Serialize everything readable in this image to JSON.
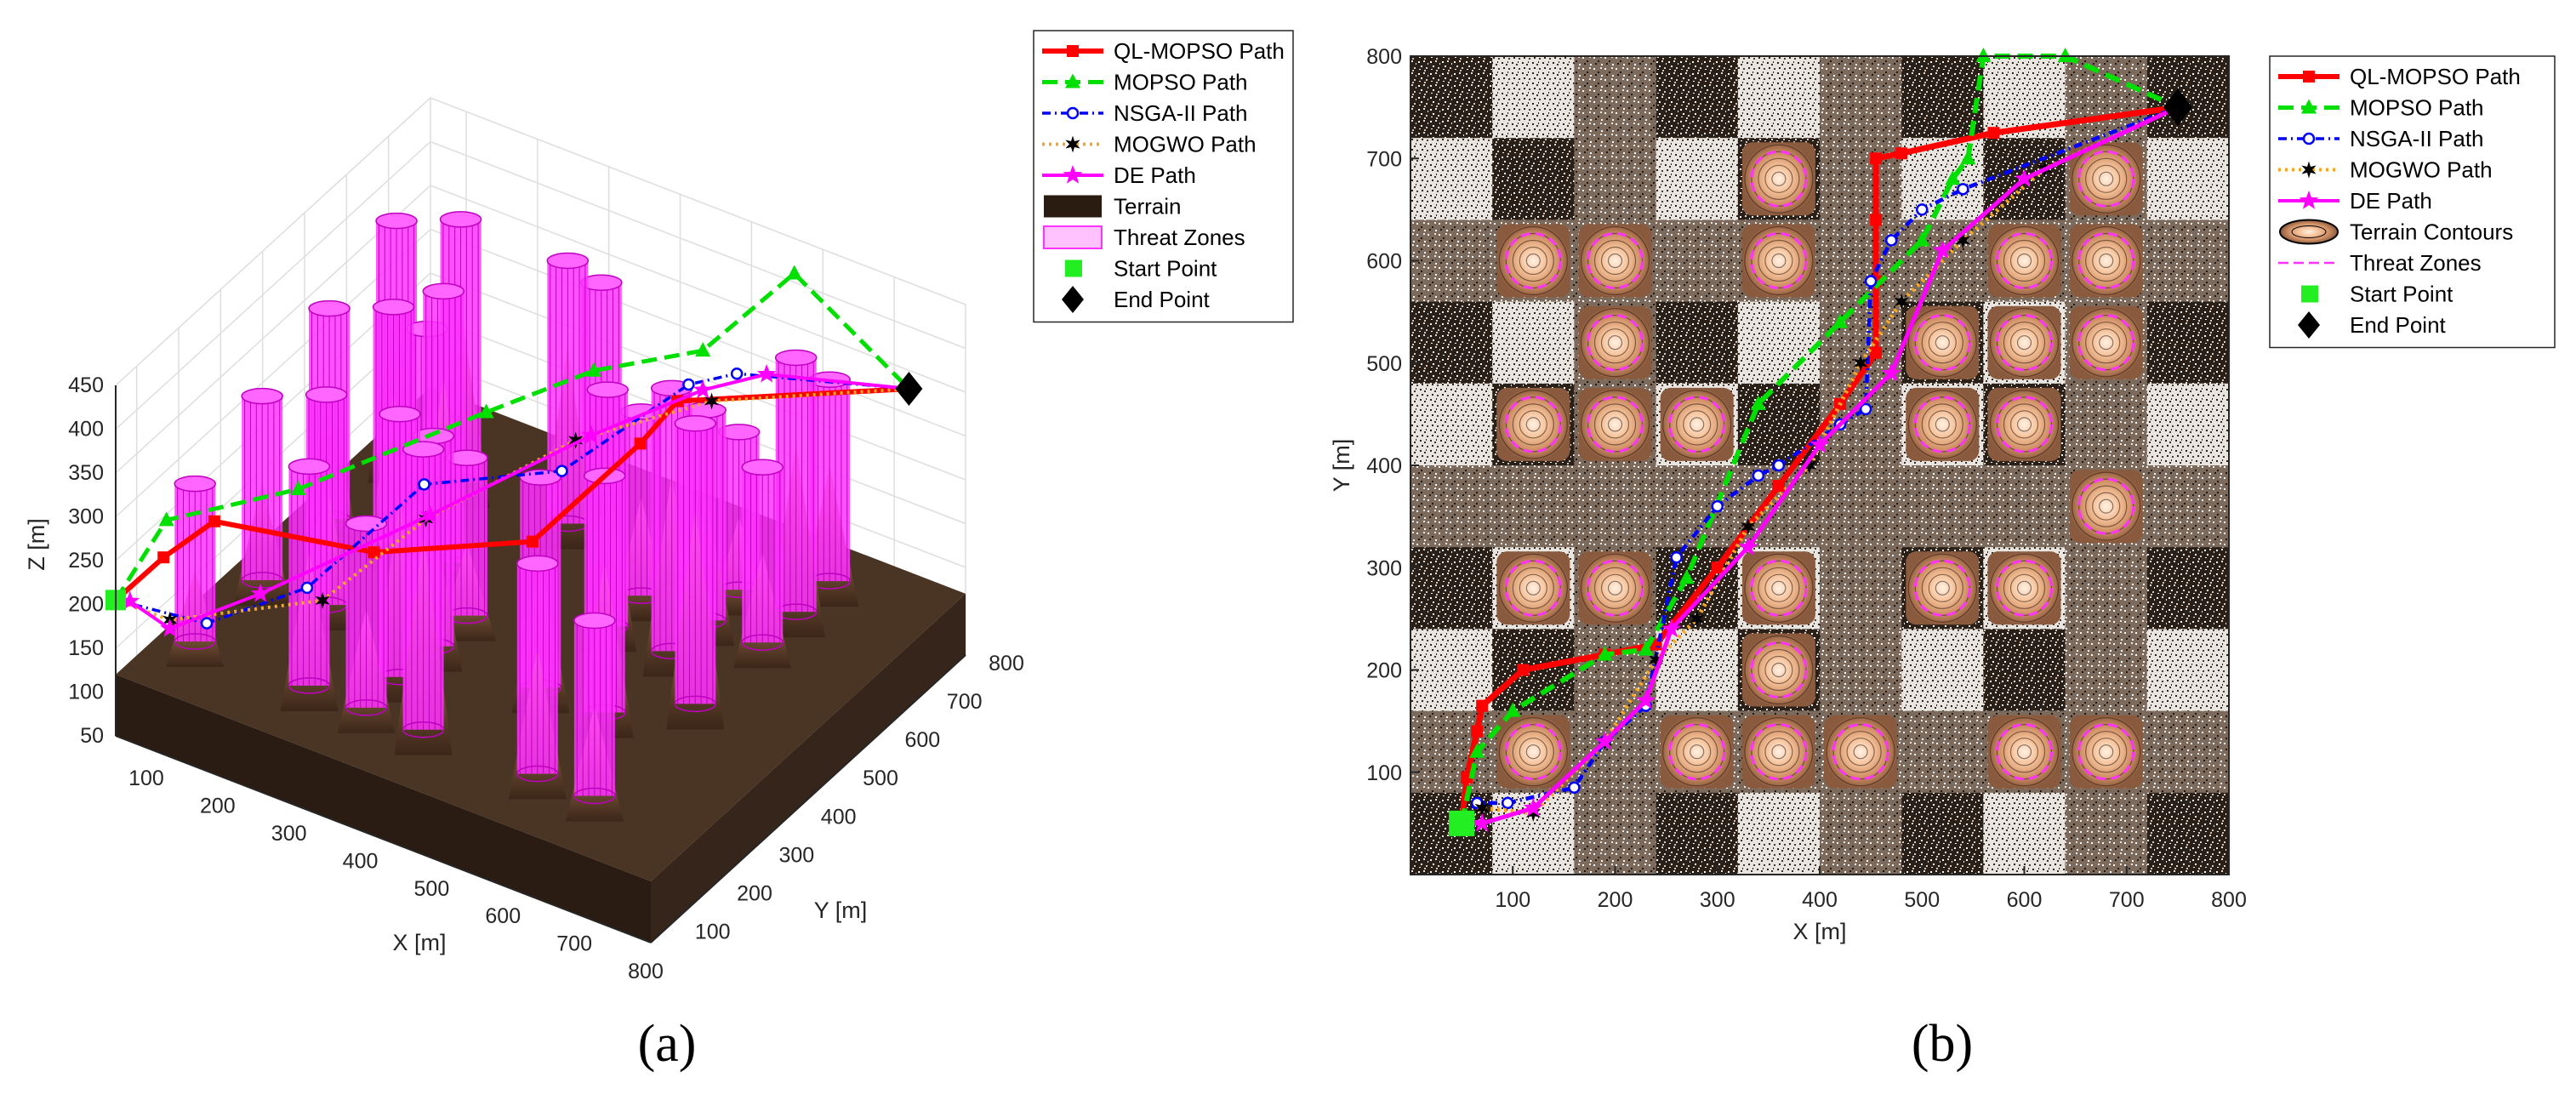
{
  "panels": [
    "(a)",
    "(b)"
  ],
  "colors": {
    "ql": "#ff0000",
    "mopso": "#00e000",
    "nsga": "#0000ff",
    "mogwo": "#f5a623",
    "de": "#ff00ff",
    "threat": "#ff33ff",
    "terrain": "#4a3424",
    "start": "#22ee22",
    "end": "#000000"
  },
  "chart_data": [
    {
      "type": "line",
      "panel": "(a)",
      "view": "3d",
      "xlabel": "X [m]",
      "ylabel": "Y [m]",
      "zlabel": "Z [m]",
      "xticks": [
        100,
        200,
        300,
        400,
        500,
        600,
        700,
        800
      ],
      "yticks": [
        100,
        200,
        300,
        400,
        500,
        600,
        700,
        800
      ],
      "zticks": [
        50,
        100,
        150,
        200,
        250,
        300,
        350,
        400,
        450
      ],
      "xlim": [
        50,
        800
      ],
      "ylim": [
        50,
        800
      ],
      "zlim": [
        50,
        450
      ],
      "legend": [
        "QL-MOPSO Path",
        "MOPSO Path",
        "NSGA-II Path",
        "MOGWO Path",
        "DE Path",
        "Terrain",
        "Threat Zones",
        "Start Point",
        "End Point"
      ],
      "threat_centers": [
        [
          120,
          600
        ],
        [
          210,
          600
        ],
        [
          360,
          600
        ],
        [
          210,
          520
        ],
        [
          120,
          440
        ],
        [
          210,
          440
        ],
        [
          280,
          440
        ],
        [
          360,
          360
        ],
        [
          120,
          280
        ],
        [
          210,
          280
        ],
        [
          360,
          280
        ],
        [
          510,
          280
        ],
        [
          600,
          280
        ],
        [
          360,
          200
        ],
        [
          120,
          120
        ],
        [
          280,
          120
        ],
        [
          360,
          120
        ],
        [
          440,
          120
        ],
        [
          600,
          120
        ],
        [
          680,
          120
        ],
        [
          510,
          520
        ],
        [
          600,
          520
        ],
        [
          680,
          520
        ],
        [
          510,
          440
        ],
        [
          600,
          440
        ],
        [
          680,
          360
        ],
        [
          360,
          680
        ],
        [
          600,
          600
        ],
        [
          680,
          600
        ],
        [
          680,
          680
        ]
      ],
      "series": [
        {
          "name": "QL-MOPSO Path",
          "points": [
            [
              50,
              50,
              205
            ],
            [
              70,
              130,
              225
            ],
            [
              100,
              200,
              245
            ],
            [
              300,
              240,
              255
            ],
            [
              440,
              380,
              250
            ],
            [
              450,
              620,
              260
            ],
            [
              455,
              700,
              275
            ],
            [
              750,
              750,
              360
            ]
          ]
        },
        {
          "name": "MOPSO Path",
          "points": [
            [
              50,
              50,
              205
            ],
            [
              80,
              120,
              275
            ],
            [
              200,
              230,
              300
            ],
            [
              340,
              440,
              340
            ],
            [
              420,
              560,
              360
            ],
            [
              520,
              650,
              375
            ],
            [
              560,
              800,
              410
            ],
            [
              750,
              750,
              360
            ]
          ]
        },
        {
          "name": "NSGA-II Path",
          "points": [
            [
              50,
              50,
              205
            ],
            [
              160,
              80,
              200
            ],
            [
              230,
              200,
              210
            ],
            [
              300,
              360,
              280
            ],
            [
              440,
              450,
              300
            ],
            [
              500,
              650,
              330
            ],
            [
              550,
              680,
              345
            ],
            [
              750,
              750,
              360
            ]
          ]
        },
        {
          "name": "MOGWO Path",
          "points": [
            [
              50,
              50,
              205
            ],
            [
              120,
              60,
              200
            ],
            [
              240,
              220,
              190
            ],
            [
              320,
              330,
              260
            ],
            [
              430,
              500,
              310
            ],
            [
              550,
              620,
              340
            ],
            [
              750,
              750,
              360
            ]
          ]
        },
        {
          "name": "DE Path",
          "points": [
            [
              50,
              50,
              205
            ],
            [
              70,
              50,
              210
            ],
            [
              120,
              60,
              190
            ],
            [
              200,
              140,
              220
            ],
            [
              320,
              340,
              260
            ],
            [
              440,
              520,
              310
            ],
            [
              520,
              650,
              330
            ],
            [
              580,
              700,
              345
            ],
            [
              750,
              750,
              360
            ]
          ]
        }
      ],
      "start": [
        50,
        50,
        205
      ],
      "end": [
        750,
        750,
        360
      ]
    },
    {
      "type": "line",
      "panel": "(b)",
      "view": "top",
      "xlabel": "X [m]",
      "ylabel": "Y [m]",
      "xticks": [
        100,
        200,
        300,
        400,
        500,
        600,
        700,
        800
      ],
      "yticks": [
        100,
        200,
        300,
        400,
        500,
        600,
        700,
        800
      ],
      "xlim": [
        0,
        800
      ],
      "ylim": [
        0,
        800
      ],
      "legend": [
        "QL-MOPSO Path",
        "MOPSO Path",
        "NSGA-II Path",
        "MOGWO Path",
        "DE Path",
        "Terrain Contours",
        "Threat Zones",
        "Start Point",
        "End Point"
      ],
      "threat_centers": [
        [
          360,
          680
        ],
        [
          680,
          680
        ],
        [
          120,
          600
        ],
        [
          200,
          600
        ],
        [
          360,
          600
        ],
        [
          600,
          600
        ],
        [
          680,
          600
        ],
        [
          200,
          520
        ],
        [
          520,
          520
        ],
        [
          600,
          520
        ],
        [
          680,
          520
        ],
        [
          120,
          440
        ],
        [
          200,
          440
        ],
        [
          280,
          440
        ],
        [
          520,
          440
        ],
        [
          600,
          440
        ],
        [
          680,
          360
        ],
        [
          120,
          280
        ],
        [
          200,
          280
        ],
        [
          360,
          280
        ],
        [
          520,
          280
        ],
        [
          600,
          280
        ],
        [
          360,
          200
        ],
        [
          120,
          120
        ],
        [
          280,
          120
        ],
        [
          360,
          120
        ],
        [
          440,
          120
        ],
        [
          600,
          120
        ],
        [
          680,
          120
        ]
      ],
      "series": [
        {
          "name": "QL-MOPSO Path",
          "points": [
            [
              50,
              50
            ],
            [
              55,
              95
            ],
            [
              65,
              140
            ],
            [
              70,
              165
            ],
            [
              110,
              200
            ],
            [
              190,
              215
            ],
            [
              240,
              225
            ],
            [
              300,
              300
            ],
            [
              360,
              380
            ],
            [
              420,
              460
            ],
            [
              455,
              510
            ],
            [
              455,
              580
            ],
            [
              455,
              640
            ],
            [
              455,
              700
            ],
            [
              480,
              705
            ],
            [
              570,
              725
            ],
            [
              750,
              750
            ]
          ]
        },
        {
          "name": "MOPSO Path",
          "points": [
            [
              50,
              50
            ],
            [
              65,
              120
            ],
            [
              100,
              160
            ],
            [
              190,
              215
            ],
            [
              230,
              220
            ],
            [
              270,
              290
            ],
            [
              340,
              460
            ],
            [
              420,
              540
            ],
            [
              500,
              620
            ],
            [
              530,
              680
            ],
            [
              545,
              700
            ],
            [
              560,
              800
            ],
            [
              640,
              800
            ],
            [
              750,
              750
            ]
          ]
        },
        {
          "name": "NSGA-II Path",
          "points": [
            [
              50,
              50
            ],
            [
              65,
              70
            ],
            [
              95,
              70
            ],
            [
              160,
              85
            ],
            [
              190,
              130
            ],
            [
              230,
              165
            ],
            [
              260,
              310
            ],
            [
              300,
              360
            ],
            [
              340,
              390
            ],
            [
              360,
              400
            ],
            [
              420,
              440
            ],
            [
              445,
              455
            ],
            [
              450,
              580
            ],
            [
              470,
              620
            ],
            [
              500,
              650
            ],
            [
              540,
              670
            ],
            [
              750,
              750
            ]
          ]
        },
        {
          "name": "MOGWO Path",
          "points": [
            [
              50,
              50
            ],
            [
              70,
              65
            ],
            [
              120,
              60
            ],
            [
              190,
              130
            ],
            [
              240,
              210
            ],
            [
              280,
              250
            ],
            [
              330,
              340
            ],
            [
              390,
              400
            ],
            [
              440,
              500
            ],
            [
              480,
              560
            ],
            [
              540,
              620
            ],
            [
              620,
              690
            ],
            [
              750,
              750
            ]
          ]
        },
        {
          "name": "DE Path",
          "points": [
            [
              50,
              50
            ],
            [
              70,
              50
            ],
            [
              120,
              65
            ],
            [
              190,
              130
            ],
            [
              230,
              170
            ],
            [
              255,
              240
            ],
            [
              330,
              320
            ],
            [
              400,
              420
            ],
            [
              470,
              490
            ],
            [
              520,
              610
            ],
            [
              600,
              680
            ],
            [
              750,
              750
            ]
          ]
        }
      ],
      "start": [
        50,
        50
      ],
      "end": [
        750,
        750
      ]
    }
  ]
}
